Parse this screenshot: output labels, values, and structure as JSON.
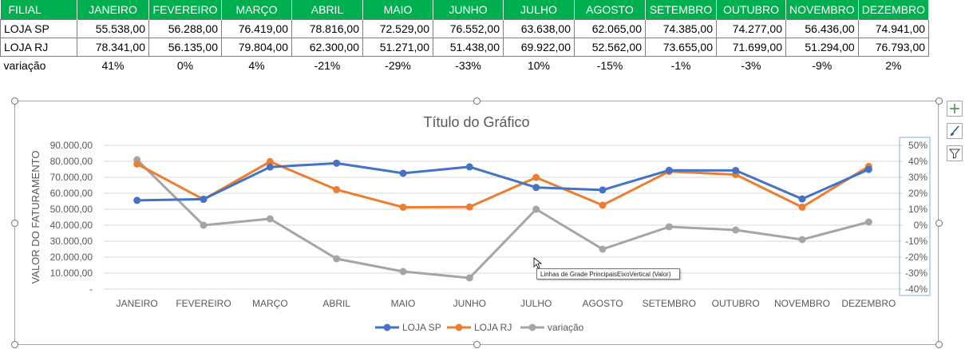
{
  "table": {
    "headers": [
      "FILIAL",
      "JANEIRO",
      "FEVEREIRO",
      "MARÇO",
      "ABRIL",
      "MAIO",
      "JUNHO",
      "JULHO",
      "AGOSTO",
      "SETEMBRO",
      "OUTUBRO",
      "NOVEMBRO",
      "DEZEMBRO"
    ],
    "rows": [
      {
        "label": "LOJA SP",
        "cells": [
          "55.538,00",
          "56.288,00",
          "76.419,00",
          "78.816,00",
          "72.529,00",
          "76.552,00",
          "63.638,00",
          "62.065,00",
          "74.385,00",
          "74.277,00",
          "56.436,00",
          "74.941,00"
        ]
      },
      {
        "label": "LOJA RJ",
        "cells": [
          "78.341,00",
          "56.135,00",
          "79.804,00",
          "62.300,00",
          "51.271,00",
          "51.438,00",
          "69.922,00",
          "52.562,00",
          "73.655,00",
          "71.699,00",
          "51.294,00",
          "76.793,00"
        ]
      }
    ],
    "variation": {
      "label": "variação",
      "cells": [
        "41%",
        "0%",
        "4%",
        "-21%",
        "-29%",
        "-33%",
        "10%",
        "-15%",
        "-1%",
        "-3%",
        "-9%",
        "2%"
      ]
    },
    "header_color": "#00b050"
  },
  "chart_data": {
    "type": "line",
    "title": "Título do Gráfico",
    "ylabel": "VALOR DO FATURAMENTO",
    "categories": [
      "JANEIRO",
      "FEVEREIRO",
      "MARÇO",
      "ABRIL",
      "MAIO",
      "JUNHO",
      "JULHO",
      "AGOSTO",
      "SETEMBRO",
      "OUTUBRO",
      "NOVEMBRO",
      "DEZEMBRO"
    ],
    "y_ticks": [
      "90.000,00",
      "80.000,00",
      "70.000,00",
      "60.000,00",
      "50.000,00",
      "40.000,00",
      "30.000,00",
      "20.000,00",
      "10.000,00",
      "-"
    ],
    "y2_ticks": [
      "50%",
      "40%",
      "30%",
      "20%",
      "10%",
      "0%",
      "-10%",
      "-20%",
      "-30%",
      "-40%"
    ],
    "ylim": [
      0,
      90000
    ],
    "y2lim": [
      -0.4,
      0.5
    ],
    "grid": true,
    "legend_position": "bottom",
    "series": [
      {
        "name": "LOJA SP",
        "axis": "primary",
        "color": "#4472c4",
        "values": [
          55538,
          56288,
          76419,
          78816,
          72529,
          76552,
          63638,
          62065,
          74385,
          74277,
          56436,
          74941
        ]
      },
      {
        "name": "LOJA RJ",
        "axis": "primary",
        "color": "#ed7d31",
        "values": [
          78341,
          56135,
          79804,
          62300,
          51271,
          51438,
          69922,
          52562,
          73655,
          71699,
          51294,
          76793
        ]
      },
      {
        "name": "variação",
        "axis": "secondary",
        "color": "#a5a5a5",
        "values": [
          0.41,
          0.0,
          0.04,
          -0.21,
          -0.29,
          -0.33,
          0.1,
          -0.15,
          -0.01,
          -0.03,
          -0.09,
          0.02
        ]
      }
    ]
  },
  "tooltip": {
    "text": "Linhas de Grade PrincipaisEixoVertical (Valor)"
  },
  "side_buttons": [
    {
      "icon": "plus-icon"
    },
    {
      "icon": "brush-icon"
    },
    {
      "icon": "filter-icon"
    }
  ]
}
